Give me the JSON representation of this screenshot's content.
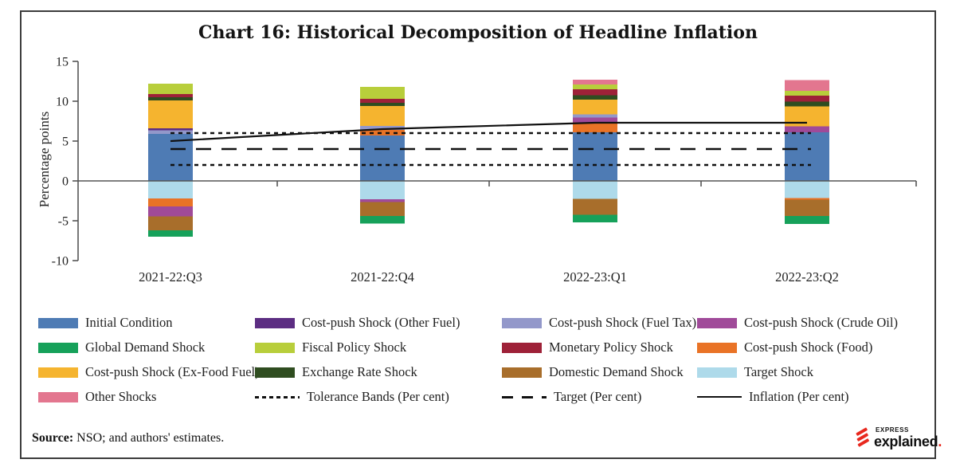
{
  "chart_data": {
    "type": "bar",
    "stacked": true,
    "title": "Chart 16: Historical Decomposition of Headline Inflation",
    "ylabel": "Percentage points",
    "xlabel": "",
    "ylim": [
      -10,
      15
    ],
    "yticks": [
      15,
      10,
      5,
      0,
      -5,
      -10
    ],
    "grid": false,
    "legend_position": "bottom",
    "categories": [
      "2021-22:Q3",
      "2021-22:Q4",
      "2022-23:Q1",
      "2022-23:Q2"
    ],
    "series": [
      {
        "name": "Initial Condition",
        "color": "#4E7BB4",
        "values": [
          5.9,
          5.7,
          6.1,
          6.1
        ]
      },
      {
        "name": "Cost-push Shock (Food)",
        "color": "#E97326",
        "values": [
          -1.0,
          0.7,
          1.25,
          -0.2
        ]
      },
      {
        "name": "Cost-push Shock (Crude Oil)",
        "color": "#A04A99",
        "values": [
          -1.25,
          -0.35,
          0.6,
          0.75
        ]
      },
      {
        "name": "Cost-push Shock (Fuel Tax)",
        "color": "#9398CA",
        "values": [
          0.45,
          0.5,
          0.4,
          0
        ]
      },
      {
        "name": "Cost-push Shock (Other Fuel)",
        "color": "#5C2D82",
        "values": [
          0.25,
          0,
          0,
          0
        ]
      },
      {
        "name": "Cost-push Shock (Ex-Food Fuel)",
        "color": "#F5B42F",
        "values": [
          3.5,
          2.5,
          1.85,
          2.5
        ]
      },
      {
        "name": "Exchange Rate Shock",
        "color": "#2F4D20",
        "values": [
          0.4,
          0.4,
          0.55,
          0.6
        ]
      },
      {
        "name": "Monetary Policy Shock",
        "color": "#9E2138",
        "values": [
          0.4,
          0.5,
          0.75,
          0.75
        ]
      },
      {
        "name": "Fiscal Policy Shock",
        "color": "#B8CE3B",
        "values": [
          1.3,
          1.5,
          0.6,
          0.6
        ]
      },
      {
        "name": "Other Shocks",
        "color": "#E3768F",
        "values": [
          0,
          0,
          0.6,
          1.35
        ]
      },
      {
        "name": "Target Shock",
        "color": "#AEDAEA",
        "values": [
          -2.2,
          -2.3,
          -2.25,
          -2.15
        ]
      },
      {
        "name": "Domestic Demand Shock",
        "color": "#A86E2B",
        "values": [
          -1.75,
          -1.75,
          -2.0,
          -2.05
        ]
      },
      {
        "name": "Global Demand Shock",
        "color": "#16A15A",
        "values": [
          -0.8,
          -0.95,
          -0.95,
          -1.0
        ]
      }
    ],
    "stack_order_negative": [
      "Target Shock",
      "Cost-push Shock (Food)",
      "Cost-push Shock (Crude Oil)",
      "Domestic Demand Shock",
      "Global Demand Shock"
    ],
    "lines": [
      {
        "name": "Tolerance Bands (Per cent)",
        "style": "dotted",
        "levels": [
          6,
          2
        ]
      },
      {
        "name": "Target (Per cent)",
        "style": "long-dash",
        "levels": [
          4
        ]
      },
      {
        "name": "Inflation (Per cent)",
        "style": "solid",
        "values": [
          5.0,
          6.5,
          7.3,
          7.3
        ]
      }
    ]
  },
  "legend": {
    "items": [
      {
        "label": "Initial Condition",
        "swatch": "#4E7BB4"
      },
      {
        "label": "Cost-push Shock (Other Fuel)",
        "swatch": "#5C2D82"
      },
      {
        "label": "Cost-push Shock (Fuel Tax)",
        "swatch": "#9398CA"
      },
      {
        "label": "Cost-push Shock (Crude Oil)",
        "swatch": "#A04A99"
      },
      {
        "label": "Global Demand Shock",
        "swatch": "#16A15A"
      },
      {
        "label": "Fiscal Policy Shock",
        "swatch": "#B8CE3B"
      },
      {
        "label": "Monetary Policy Shock",
        "swatch": "#9E2138"
      },
      {
        "label": "Cost-push Shock (Food)",
        "swatch": "#E97326"
      },
      {
        "label": "Cost-push Shock (Ex-Food Fuel)",
        "swatch": "#F5B42F"
      },
      {
        "label": "Exchange Rate Shock",
        "swatch": "#2F4D20"
      },
      {
        "label": "Domestic Demand Shock",
        "swatch": "#A86E2B"
      },
      {
        "label": "Target Shock",
        "swatch": "#AEDAEA"
      },
      {
        "label": "Other Shocks",
        "swatch": "#E3768F"
      },
      {
        "label": "Tolerance Bands (Per cent)",
        "swatch": "dotted"
      },
      {
        "label": "Target (Per cent)",
        "swatch": "long-dash"
      },
      {
        "label": "Inflation (Per cent)",
        "swatch": "solid"
      }
    ]
  },
  "source": {
    "prefix": "Source:",
    "text": " NSO; and authors' estimates."
  },
  "logo": {
    "top": "EXPRESS",
    "bottom": "explained",
    "dot": ".",
    "accent_color": "#E8281E"
  }
}
